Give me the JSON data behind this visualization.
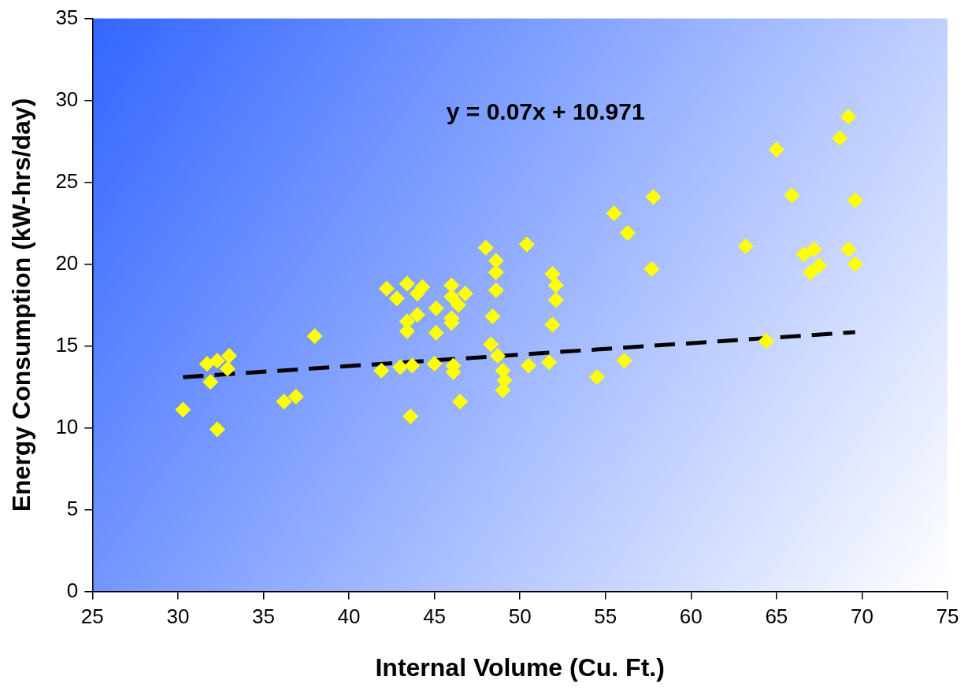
{
  "chart_data": {
    "type": "scatter",
    "xlabel": "Internal Volume (Cu. Ft.)",
    "ylabel": "Energy Consumption (kW-hrs/day)",
    "xlim": [
      25,
      75
    ],
    "xticks": [
      25,
      30,
      35,
      40,
      45,
      50,
      55,
      60,
      65,
      70,
      75
    ],
    "ylim": [
      0,
      35
    ],
    "yticks": [
      0,
      5,
      10,
      15,
      20,
      25,
      30,
      35
    ],
    "grid": false,
    "legend": false,
    "marker": "diamond",
    "annotations": [
      "y = 0.07x + 10.971"
    ],
    "series": [
      {
        "color": "#ffff00",
        "x": [
          30.3,
          31.7,
          31.9,
          32.3,
          32.3,
          32.9,
          33.0,
          36.2,
          36.9,
          38.0,
          41.9,
          42.2,
          42.8,
          43.0,
          43.4,
          43.4,
          43.4,
          43.6,
          43.7,
          44.0,
          44.0,
          44.3,
          45.0,
          45.1,
          45.1,
          46.0,
          46.0,
          46.0,
          46.0,
          46.1,
          46.1,
          46.4,
          46.5,
          46.8,
          48.0,
          48.3,
          48.4,
          48.6,
          48.6,
          48.6,
          48.7,
          49.0,
          49.1,
          49.0,
          50.4,
          50.5,
          51.7,
          51.9,
          52.1,
          52.1,
          51.9,
          54.5,
          55.5,
          56.1,
          56.3,
          57.7,
          57.8,
          63.2,
          64.4,
          65.0,
          65.9,
          66.6,
          67.0,
          67.2,
          67.5,
          68.7,
          69.2,
          69.2,
          69.6,
          69.6
        ],
        "values": [
          11.1,
          13.9,
          12.8,
          14.1,
          9.9,
          13.6,
          14.4,
          11.6,
          11.9,
          15.6,
          13.5,
          18.5,
          17.9,
          13.7,
          18.8,
          16.5,
          15.9,
          10.7,
          13.8,
          18.2,
          16.9,
          18.6,
          13.9,
          17.3,
          15.8,
          18.7,
          18.0,
          16.7,
          16.4,
          13.8,
          13.4,
          17.5,
          11.6,
          18.2,
          21.0,
          15.1,
          16.8,
          20.2,
          19.5,
          18.4,
          14.4,
          13.5,
          12.9,
          12.3,
          21.2,
          13.8,
          14.0,
          19.4,
          18.7,
          17.8,
          16.3,
          13.1,
          23.1,
          14.1,
          21.9,
          19.7,
          24.1,
          21.1,
          15.3,
          27.0,
          24.2,
          20.6,
          19.5,
          20.9,
          19.9,
          27.7,
          29.0,
          20.9,
          23.9,
          20.0
        ]
      },
      {
        "type": "line",
        "color": "#000000",
        "line_style": "dashed",
        "marker": "none",
        "x": [
          30.3,
          69.6
        ],
        "values": [
          13.09,
          15.84
        ]
      }
    ]
  }
}
